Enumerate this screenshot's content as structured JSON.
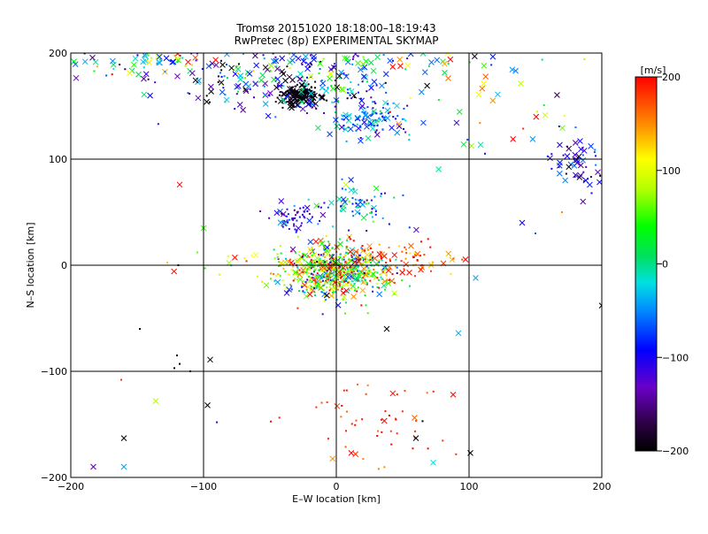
{
  "chart_data": {
    "type": "scatter",
    "title": "Tromsø 20151020 18:18:00–18:19:43",
    "subtitle": "RwPretec (8p) EXPERIMENTAL SKYMAP",
    "xlabel": "E–W location [km]",
    "ylabel": "N–S location [km]",
    "xlim": [
      -200,
      200
    ],
    "ylim": [
      -200,
      200
    ],
    "xticks": [
      "−200",
      "−100",
      "0",
      "100",
      "200"
    ],
    "yticks": [
      "−200",
      "−100",
      "0",
      "100",
      "200"
    ],
    "grid": true,
    "colorbar": {
      "label": "[m/s]",
      "range": [
        -200,
        200
      ],
      "ticks": [
        "−200",
        "−100",
        "0",
        "100",
        "200"
      ],
      "colormap": "rainbow (black–purple–blue–cyan–green–yellow–red)"
    },
    "markers": [
      "cross",
      "dot"
    ],
    "clusters": [
      {
        "x": 0,
        "y": -5,
        "sx": 18,
        "sy": 12,
        "n": 650,
        "vmean": 60,
        "vsd": 110,
        "cross": 0.2
      },
      {
        "x": -28,
        "y": 160,
        "sx": 7,
        "sy": 5,
        "n": 140,
        "vmean": -195,
        "vsd": 8,
        "cross": 0.45
      },
      {
        "x": -35,
        "y": 172,
        "sx": 45,
        "sy": 16,
        "n": 230,
        "vmean": -90,
        "vsd": 90,
        "cross": 0.5
      },
      {
        "x": 25,
        "y": 140,
        "sx": 16,
        "sy": 10,
        "n": 120,
        "vmean": -60,
        "vsd": 40,
        "cross": 0.4
      },
      {
        "x": 20,
        "y": 60,
        "sx": 15,
        "sy": 12,
        "n": 70,
        "vmean": -30,
        "vsd": 60,
        "cross": 0.2
      },
      {
        "x": -30,
        "y": 45,
        "sx": 10,
        "sy": 6,
        "n": 60,
        "vmean": -110,
        "vsd": 25,
        "cross": 0.15
      },
      {
        "x": 180,
        "y": 95,
        "sx": 15,
        "sy": 12,
        "n": 60,
        "vmean": -110,
        "vsd": 45,
        "cross": 0.55
      },
      {
        "x": -150,
        "y": 190,
        "sx": 40,
        "sy": 8,
        "n": 70,
        "vmean": -40,
        "vsd": 110,
        "cross": 0.6
      },
      {
        "x": 0,
        "y": 192,
        "sx": 70,
        "sy": 6,
        "n": 60,
        "vmean": 20,
        "vsd": 100,
        "cross": 0.6
      },
      {
        "x": 100,
        "y": 150,
        "sx": 45,
        "sy": 25,
        "n": 40,
        "vmean": 60,
        "vsd": 120,
        "cross": 0.5
      },
      {
        "x": 25,
        "y": -150,
        "sx": 30,
        "sy": 25,
        "n": 55,
        "vmean": 180,
        "vsd": 20,
        "cross": 0.15
      },
      {
        "x": 40,
        "y": 5,
        "sx": 25,
        "sy": 10,
        "n": 90,
        "vmean": 170,
        "vsd": 30,
        "cross": 0.3
      },
      {
        "x": -50,
        "y": 0,
        "sx": 40,
        "sy": 10,
        "n": 50,
        "vmean": 100,
        "vsd": 70,
        "cross": 0.4
      }
    ],
    "scattered": [
      {
        "x": -118,
        "y": 76,
        "v": 200,
        "m": "x"
      },
      {
        "x": -100,
        "y": 35,
        "v": 50,
        "m": "x"
      },
      {
        "x": -120,
        "y": -85,
        "v": -200,
        "m": "."
      },
      {
        "x": -118,
        "y": -93,
        "v": -200,
        "m": "."
      },
      {
        "x": -122,
        "y": -97,
        "v": -200,
        "m": "."
      },
      {
        "x": -95,
        "y": -89,
        "v": -200,
        "m": "x"
      },
      {
        "x": -148,
        "y": -60,
        "v": -200,
        "m": "."
      },
      {
        "x": -110,
        "y": -100,
        "v": -200,
        "m": "."
      },
      {
        "x": -97,
        "y": -132,
        "v": -200,
        "m": "x"
      },
      {
        "x": -136,
        "y": -128,
        "v": 80,
        "m": "x"
      },
      {
        "x": -162,
        "y": -108,
        "v": 180,
        "m": "."
      },
      {
        "x": -160,
        "y": -163,
        "v": -200,
        "m": "x"
      },
      {
        "x": -183,
        "y": -190,
        "v": -140,
        "m": "x"
      },
      {
        "x": -160,
        "y": -190,
        "v": -40,
        "m": "x"
      },
      {
        "x": 101,
        "y": -177,
        "v": -200,
        "m": "x"
      },
      {
        "x": 73,
        "y": -186,
        "v": -20,
        "m": "x"
      },
      {
        "x": 105,
        "y": -12,
        "v": -40,
        "m": "x"
      },
      {
        "x": 92,
        "y": -64,
        "v": -40,
        "m": "x"
      },
      {
        "x": 88,
        "y": -122,
        "v": 200,
        "m": "x"
      },
      {
        "x": 200,
        "y": -38,
        "v": -200,
        "m": "x"
      },
      {
        "x": 65,
        "y": -147,
        "v": -200,
        "m": "."
      },
      {
        "x": 60,
        "y": -163,
        "v": -200,
        "m": "x"
      },
      {
        "x": 38,
        "y": -60,
        "v": -200,
        "m": "x"
      },
      {
        "x": -90,
        "y": -148,
        "v": -120,
        "m": "."
      },
      {
        "x": -119,
        "y": 0,
        "v": -200,
        "m": "."
      },
      {
        "x": 140,
        "y": 40,
        "v": -100,
        "m": "x"
      },
      {
        "x": 170,
        "y": 50,
        "v": 150,
        "m": "."
      },
      {
        "x": 150,
        "y": 30,
        "v": -60,
        "m": "."
      }
    ]
  }
}
